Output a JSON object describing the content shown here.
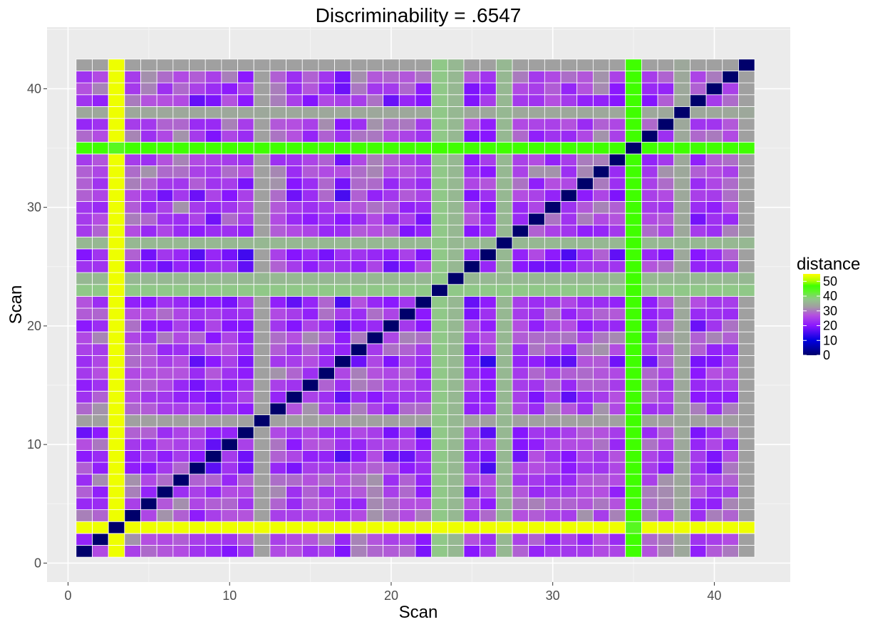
{
  "chart_data": {
    "type": "heatmap",
    "title": "Discriminability = .6547",
    "xlabel": "Scan",
    "ylabel": "Scan",
    "n": 42,
    "xlim": [
      -1.3,
      44.7
    ],
    "ylim": [
      -1.6,
      45.2
    ],
    "x_ticks": [
      0,
      10,
      20,
      30,
      40
    ],
    "y_ticks": [
      0,
      10,
      20,
      30,
      40
    ],
    "grid": true,
    "legend": {
      "title": "distance",
      "position": "right",
      "range": [
        0,
        55
      ],
      "ticks": [
        0,
        10,
        20,
        30,
        40,
        50
      ],
      "gradient_stops": [
        {
          "value": 0,
          "color": "#00006b"
        },
        {
          "value": 10,
          "color": "#0000e0"
        },
        {
          "value": 20,
          "color": "#8a16ff"
        },
        {
          "value": 27,
          "color": "#b44fe0"
        },
        {
          "value": 33,
          "color": "#a0a0a0"
        },
        {
          "value": 38,
          "color": "#90c888"
        },
        {
          "value": 43,
          "color": "#5ef52a"
        },
        {
          "value": 47,
          "color": "#40ff00"
        },
        {
          "value": 50,
          "color": "#a8ff00"
        },
        {
          "value": 55,
          "color": "#ffff00"
        }
      ]
    },
    "row_offsets": [
      0,
      1,
      4,
      3,
      1,
      0,
      2,
      -2,
      -3,
      -1,
      -3,
      2,
      3,
      -2,
      0,
      1,
      -4,
      1,
      2,
      -1,
      0,
      -2,
      4,
      3,
      -3,
      -4,
      2,
      -1,
      0,
      1,
      -2,
      1,
      3,
      0,
      -3,
      1,
      2,
      -1,
      -2,
      0,
      2,
      -1
    ],
    "special_values": {
      "diagonal": 0,
      "scan_3": 54,
      "scan_35": 47,
      "scan_23": 38,
      "scan_24": 36,
      "scan_27": 36,
      "scan_12": 33,
      "scan_38": 34,
      "scan_42": 33,
      "scan_3_x_35": 44,
      "base_range": [
        20,
        30
      ]
    }
  }
}
